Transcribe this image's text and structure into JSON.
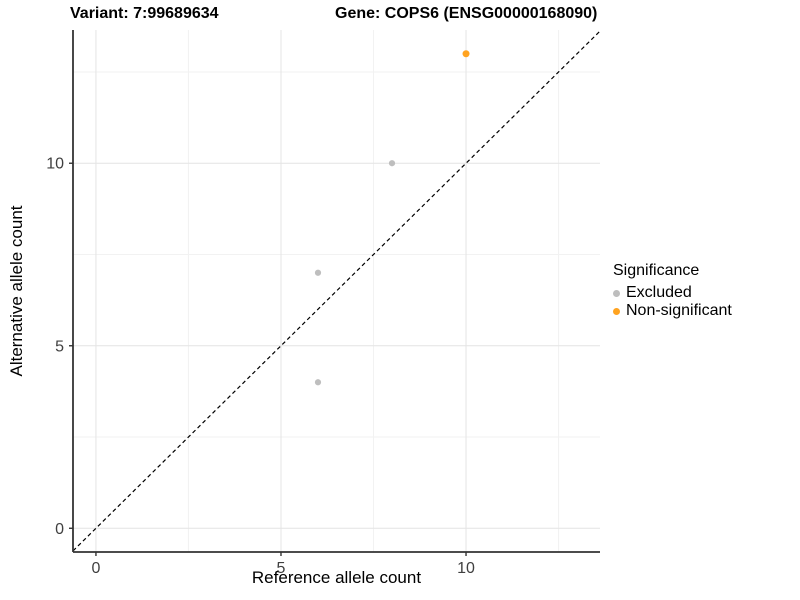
{
  "titles": {
    "variant": "Variant: 7:99689634",
    "gene": "Gene: COPS6 (ENSG00000168090)"
  },
  "axes": {
    "x_label": "Reference allele count",
    "y_label": "Alternative allele count"
  },
  "legend": {
    "title": "Significance",
    "items": [
      {
        "label": "Excluded",
        "color": "#BEBEBE"
      },
      {
        "label": "Non-significant",
        "color": "#FFA320"
      }
    ]
  },
  "chart_data": {
    "type": "scatter",
    "title": "Variant: 7:99689634 | Gene: COPS6 (ENSG00000168090)",
    "xlabel": "Reference allele count",
    "ylabel": "Alternative allele count",
    "xlim": [
      -0.62,
      13.62
    ],
    "ylim": [
      -0.65,
      13.65
    ],
    "x_ticks": [
      0,
      5,
      10
    ],
    "y_ticks": [
      0,
      5,
      10
    ],
    "x_minor_ticks": [
      2.5,
      7.5,
      12.5
    ],
    "y_minor_ticks": [
      2.5,
      7.5,
      12.5
    ],
    "grid": true,
    "legend_position": "right",
    "series": [
      {
        "name": "Excluded",
        "color": "#BEBEBE",
        "size": 3.1,
        "points": [
          [
            6,
            4
          ],
          [
            6,
            7
          ],
          [
            8,
            10
          ]
        ]
      },
      {
        "name": "Non-significant",
        "color": "#FFA320",
        "size": 3.5,
        "points": [
          [
            10,
            13
          ]
        ]
      }
    ],
    "reference_line": {
      "type": "identity",
      "slope": 1,
      "intercept": 0,
      "style": "dashed",
      "color": "#000000"
    }
  },
  "style": {
    "grid_major": "#E4E4E4",
    "grid_minor": "#F2F2F2",
    "axis_line": "#333333",
    "tick_label": "#404040",
    "background": "#FFFFFF"
  }
}
